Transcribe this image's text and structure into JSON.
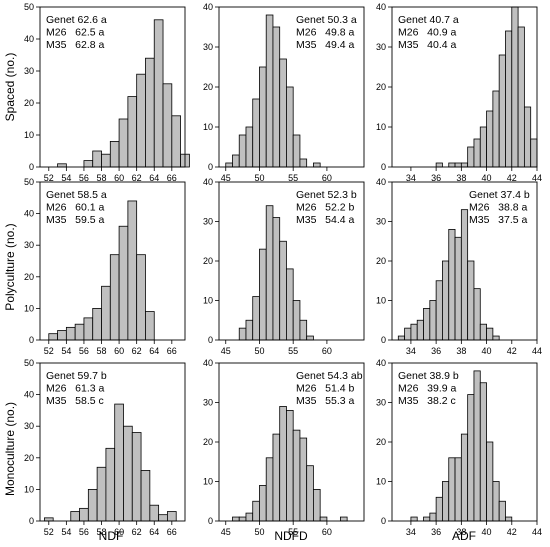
{
  "figure": {
    "row_labels": [
      "Spaced (no.)",
      "Polyculture (no.)",
      "Monoculture (no.)"
    ],
    "col_labels": [
      "NDF",
      "NDFD",
      "ADF"
    ]
  },
  "chart_data": [
    {
      "type": "bar",
      "row": 0,
      "col": 0,
      "bin_start": 53,
      "bin_width": 1,
      "values": [
        1,
        0,
        0,
        2,
        5,
        4,
        8,
        15,
        22,
        29,
        34,
        46,
        26,
        16,
        4
      ],
      "xlim": [
        51,
        67.5
      ],
      "xticks": [
        52,
        54,
        56,
        58,
        60,
        62,
        64,
        66
      ],
      "ylim": [
        0,
        50
      ],
      "yticks": [
        0,
        10,
        20,
        30,
        40,
        50
      ],
      "annotation": [
        "Genet 62.6 a",
        "M26   62.5 a",
        "M35   62.8 a"
      ],
      "annotation_pos": "top-left"
    },
    {
      "type": "bar",
      "row": 0,
      "col": 1,
      "bin_start": 45,
      "bin_width": 1,
      "values": [
        1,
        3,
        8,
        10,
        17,
        25,
        38,
        35,
        27,
        20,
        8,
        2,
        0,
        1
      ],
      "xlim": [
        44,
        65.5
      ],
      "xticks": [
        45,
        50,
        55,
        60
      ],
      "ylim": [
        0,
        40
      ],
      "yticks": [
        0,
        10,
        20,
        30,
        40
      ],
      "annotation": [
        "Genet 50.3 a",
        "M26   49.8 a",
        "M35   49.4 a"
      ],
      "annotation_pos": "top-right"
    },
    {
      "type": "bar",
      "row": 0,
      "col": 2,
      "bin_start": 36,
      "bin_width": 0.5,
      "values": [
        1,
        0,
        1,
        1,
        1,
        5,
        7,
        10,
        14,
        19,
        28,
        34,
        40,
        35,
        15,
        7
      ],
      "xlim": [
        32.5,
        44
      ],
      "xticks": [
        34,
        36,
        38,
        40,
        42,
        44
      ],
      "ylim": [
        0,
        40
      ],
      "yticks": [
        0,
        10,
        20,
        30,
        40
      ],
      "annotation": [
        "Genet 40.7 a",
        "M26   40.9 a",
        "M35   40.4 a"
      ],
      "annotation_pos": "top-left"
    },
    {
      "type": "bar",
      "row": 1,
      "col": 0,
      "bin_start": 52,
      "bin_width": 1,
      "values": [
        2,
        3,
        4,
        5,
        7,
        10,
        17,
        27,
        36,
        44,
        27,
        9
      ],
      "xlim": [
        51,
        67.5
      ],
      "xticks": [
        52,
        54,
        56,
        58,
        60,
        62,
        64,
        66
      ],
      "ylim": [
        0,
        50
      ],
      "yticks": [
        0,
        10,
        20,
        30,
        40,
        50
      ],
      "annotation": [
        "Genet 58.5 a",
        "M26   60.1 a",
        "M35   59.5 a"
      ],
      "annotation_pos": "top-left"
    },
    {
      "type": "bar",
      "row": 1,
      "col": 1,
      "bin_start": 47,
      "bin_width": 1,
      "values": [
        3,
        5,
        11,
        23,
        34,
        31,
        25,
        18,
        10,
        5,
        1
      ],
      "xlim": [
        44,
        65.5
      ],
      "xticks": [
        45,
        50,
        55,
        60
      ],
      "ylim": [
        0,
        40
      ],
      "yticks": [
        0,
        10,
        20,
        30,
        40
      ],
      "annotation": [
        "Genet 52.3 b",
        "M26   52.2 b",
        "M35   54.4 a"
      ],
      "annotation_pos": "top-right"
    },
    {
      "type": "bar",
      "row": 1,
      "col": 2,
      "bin_start": 33,
      "bin_width": 0.5,
      "values": [
        1,
        3,
        4,
        5,
        8,
        10,
        15,
        20,
        28,
        26,
        33,
        20,
        13,
        4,
        3,
        1
      ],
      "xlim": [
        32.5,
        44
      ],
      "xticks": [
        34,
        36,
        38,
        40,
        42,
        44
      ],
      "ylim": [
        0,
        40
      ],
      "yticks": [
        0,
        10,
        20,
        30,
        40
      ],
      "annotation": [
        "Genet 37.4 b",
        "M26   38.8 a",
        "M35   37.5 a"
      ],
      "annotation_pos": "top-right"
    },
    {
      "type": "bar",
      "row": 2,
      "col": 0,
      "bin_start": 51.5,
      "bin_width": 1,
      "values": [
        1,
        0,
        0,
        3,
        4,
        10,
        17,
        23,
        37,
        30,
        28,
        16,
        5,
        2,
        3
      ],
      "xlim": [
        51,
        67.5
      ],
      "xticks": [
        52,
        54,
        56,
        58,
        60,
        62,
        64,
        66
      ],
      "ylim": [
        0,
        50
      ],
      "yticks": [
        0,
        10,
        20,
        30,
        40,
        50
      ],
      "annotation": [
        "Genet 59.7 b",
        "M26   61.3 a",
        "M35   58.5 c"
      ],
      "annotation_pos": "top-left"
    },
    {
      "type": "bar",
      "row": 2,
      "col": 1,
      "bin_start": 46,
      "bin_width": 1,
      "values": [
        1,
        1,
        2,
        5,
        9,
        16,
        22,
        29,
        28,
        23,
        21,
        14,
        8,
        1,
        0,
        0,
        1
      ],
      "xlim": [
        44,
        65.5
      ],
      "xticks": [
        45,
        50,
        55,
        60
      ],
      "ylim": [
        0,
        40
      ],
      "yticks": [
        0,
        10,
        20,
        30,
        40
      ],
      "annotation": [
        "Genet 54.3 ab",
        "M26   51.4 b",
        "M35   55.3 a"
      ],
      "annotation_pos": "top-right"
    },
    {
      "type": "bar",
      "row": 2,
      "col": 2,
      "bin_start": 34,
      "bin_width": 0.5,
      "values": [
        1,
        0,
        1,
        2,
        6,
        10,
        16,
        16,
        22,
        32,
        38,
        35,
        20,
        10,
        5,
        1
      ],
      "xlim": [
        32.5,
        44
      ],
      "xticks": [
        34,
        36,
        38,
        40,
        42,
        44
      ],
      "ylim": [
        0,
        40
      ],
      "yticks": [
        0,
        10,
        20,
        30,
        40
      ],
      "annotation": [
        "Genet 38.9 b",
        "M26   39.9 a",
        "M35   38.2 c"
      ],
      "annotation_pos": "top-left"
    }
  ]
}
